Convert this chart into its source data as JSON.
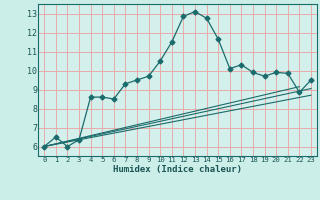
{
  "title": "",
  "xlabel": "Humidex (Indice chaleur)",
  "xlim": [
    -0.5,
    23.5
  ],
  "ylim": [
    5.5,
    13.5
  ],
  "xticks": [
    0,
    1,
    2,
    3,
    4,
    5,
    6,
    7,
    8,
    9,
    10,
    11,
    12,
    13,
    14,
    15,
    16,
    17,
    18,
    19,
    20,
    21,
    22,
    23
  ],
  "yticks": [
    6,
    7,
    8,
    9,
    10,
    11,
    12,
    13
  ],
  "bg_color": "#cceee8",
  "plot_bg_color": "#d4f0ec",
  "grid_color": "#e8aaaa",
  "line_color": "#1a6b6b",
  "line1_x": [
    0,
    1,
    2,
    3,
    4,
    5,
    6,
    7,
    8,
    9,
    10,
    11,
    12,
    13,
    14,
    15,
    16,
    17,
    18,
    19,
    20,
    21,
    22,
    23
  ],
  "line1_y": [
    6.0,
    6.5,
    6.0,
    6.35,
    8.6,
    8.6,
    8.5,
    9.3,
    9.5,
    9.7,
    10.5,
    11.5,
    12.85,
    13.1,
    12.75,
    11.65,
    10.1,
    10.3,
    9.9,
    9.7,
    9.9,
    9.85,
    8.85,
    9.5
  ],
  "line2_x": [
    0,
    22
  ],
  "line2_y": [
    6.0,
    9.15
  ],
  "line3_x": [
    0,
    23
  ],
  "line3_y": [
    6.0,
    9.05
  ],
  "line4_x": [
    0,
    23
  ],
  "line4_y": [
    6.0,
    8.7
  ]
}
